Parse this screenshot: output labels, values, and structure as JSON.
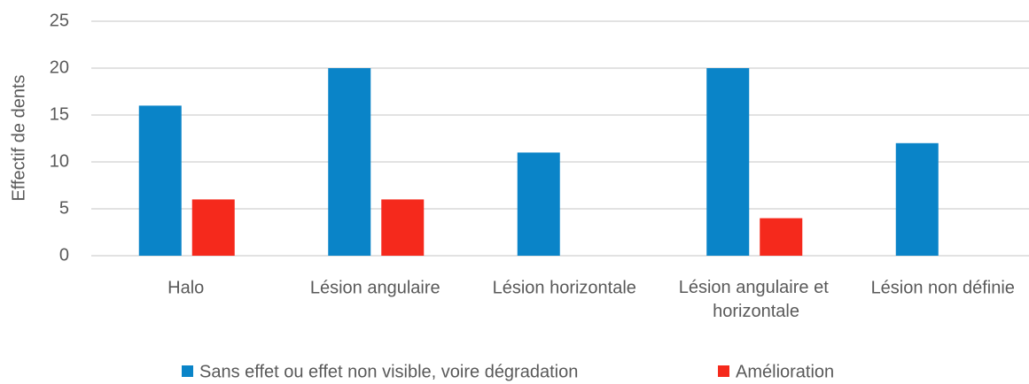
{
  "chart_data": {
    "type": "bar",
    "y_label": "Effectif de dents",
    "categories": [
      "Halo",
      "Lésion angulaire",
      "Lésion horizontale",
      "Lésion angulaire et horizontale",
      "Lésion non définie"
    ],
    "series": [
      {
        "name": "Sans effet ou effet non visible, voire dégradation",
        "color": "#0a84c8",
        "values": [
          16,
          20,
          11,
          20,
          12
        ]
      },
      {
        "name": "Amélioration",
        "color": "#f5291c",
        "values": [
          6,
          6,
          0,
          4,
          0
        ]
      }
    ],
    "ylim": [
      0,
      25
    ],
    "yticks": [
      0,
      5,
      10,
      15,
      20,
      25
    ],
    "grid": true,
    "legend": "bottom"
  }
}
